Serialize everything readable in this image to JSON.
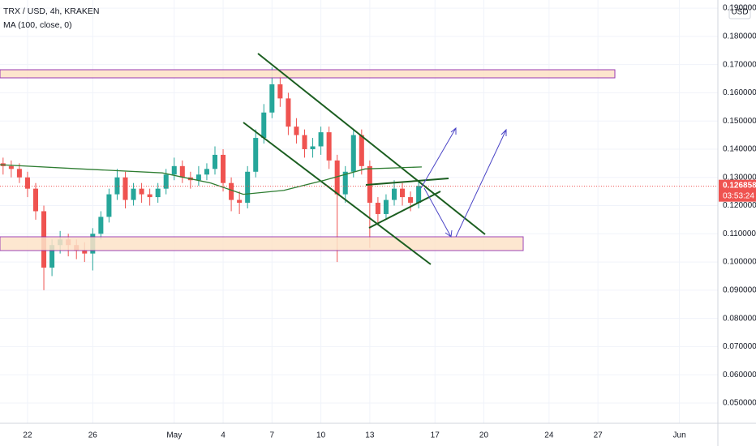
{
  "chart_data": {
    "type": "candlestick",
    "title": "TRX / USD, 4h, KRAKEN",
    "indicator_label": "MA (100, close, 0)",
    "currency": "USD",
    "up_color": "#26a69a",
    "down_color": "#ef5350",
    "x": [
      -1.5,
      -1,
      -0.5,
      0,
      0.5,
      1,
      1.5,
      2,
      2.5,
      3,
      3.5,
      4,
      4.5,
      5,
      5.5,
      6,
      6.5,
      7,
      7.5,
      8,
      8.5,
      9,
      9.5,
      10,
      10.5,
      11,
      11.5,
      12,
      12.5,
      13,
      13.5,
      14,
      14.5,
      15,
      15.5,
      16,
      16.5,
      17,
      17.5,
      18,
      18.5,
      19,
      19.5,
      20,
      20.5,
      21,
      21.5,
      22,
      22.5,
      23,
      23.5,
      24
    ],
    "open": [
      0.135,
      0.134,
      0.133,
      0.13,
      0.126,
      0.118,
      0.098,
      0.106,
      0.108,
      0.106,
      0.104,
      0.103,
      0.11,
      0.116,
      0.124,
      0.13,
      0.122,
      0.126,
      0.124,
      0.123,
      0.126,
      0.131,
      0.134,
      0.13,
      0.129,
      0.131,
      0.133,
      0.138,
      0.128,
      0.122,
      0.121,
      0.132,
      0.144,
      0.153,
      0.163,
      0.158,
      0.148,
      0.145,
      0.14,
      0.141,
      0.146,
      0.136,
      0.124,
      0.132,
      0.145,
      0.134,
      0.121,
      0.117,
      0.122,
      0.126,
      0.123,
      0.121
    ],
    "high": [
      0.137,
      0.136,
      0.135,
      0.132,
      0.128,
      0.12,
      0.108,
      0.111,
      0.11,
      0.108,
      0.107,
      0.112,
      0.118,
      0.126,
      0.133,
      0.132,
      0.128,
      0.128,
      0.126,
      0.128,
      0.133,
      0.137,
      0.136,
      0.132,
      0.134,
      0.135,
      0.141,
      0.14,
      0.13,
      0.125,
      0.134,
      0.147,
      0.156,
      0.169,
      0.166,
      0.16,
      0.151,
      0.147,
      0.144,
      0.148,
      0.148,
      0.138,
      0.134,
      0.147,
      0.147,
      0.136,
      0.123,
      0.124,
      0.129,
      0.128,
      0.125,
      0.129
    ],
    "low": [
      0.131,
      0.13,
      0.128,
      0.123,
      0.115,
      0.09,
      0.095,
      0.103,
      0.102,
      0.101,
      0.1,
      0.097,
      0.108,
      0.114,
      0.122,
      0.119,
      0.12,
      0.121,
      0.12,
      0.121,
      0.124,
      0.129,
      0.128,
      0.126,
      0.127,
      0.129,
      0.131,
      0.125,
      0.118,
      0.117,
      0.119,
      0.13,
      0.142,
      0.151,
      0.155,
      0.145,
      0.142,
      0.137,
      0.137,
      0.138,
      0.133,
      0.1,
      0.121,
      0.13,
      0.131,
      0.105,
      0.113,
      0.115,
      0.12,
      0.12,
      0.118,
      0.119
    ],
    "close": [
      0.134,
      0.133,
      0.13,
      0.126,
      0.118,
      0.098,
      0.106,
      0.108,
      0.106,
      0.104,
      0.103,
      0.11,
      0.116,
      0.124,
      0.13,
      0.122,
      0.126,
      0.124,
      0.123,
      0.126,
      0.131,
      0.134,
      0.13,
      0.129,
      0.131,
      0.133,
      0.138,
      0.128,
      0.122,
      0.121,
      0.132,
      0.144,
      0.153,
      0.163,
      0.158,
      0.148,
      0.145,
      0.14,
      0.141,
      0.146,
      0.136,
      0.124,
      0.132,
      0.145,
      0.134,
      0.121,
      0.117,
      0.122,
      0.126,
      0.123,
      0.121,
      0.127
    ],
    "ma": {
      "color": "#2e7d32",
      "x": [
        -1.69,
        3.28,
        8.26,
        11.25,
        13.24,
        15.73,
        18.22,
        20.71,
        24.19
      ],
      "values": [
        0.1345,
        0.133,
        0.1316,
        0.128,
        0.124,
        0.1254,
        0.129,
        0.133,
        0.1337
      ]
    },
    "last_price": 0.126858,
    "countdown": "03:53:24",
    "xlim": [
      -1.69,
      42.36
    ],
    "xticks": [
      {
        "value": 0,
        "label": "22"
      },
      {
        "value": 4,
        "label": "26"
      },
      {
        "value": 9,
        "label": "May"
      },
      {
        "value": 12,
        "label": "4"
      },
      {
        "value": 15,
        "label": "7"
      },
      {
        "value": 18,
        "label": "10"
      },
      {
        "value": 21,
        "label": "13"
      },
      {
        "value": 25,
        "label": "17"
      },
      {
        "value": 28,
        "label": "20"
      },
      {
        "value": 32,
        "label": "24"
      },
      {
        "value": 35,
        "label": "27"
      },
      {
        "value": 40,
        "label": "Jun"
      }
    ],
    "ylim": [
      0.0428,
      0.1929
    ],
    "yticks": [
      {
        "value": 0.05,
        "label": "0.050000"
      },
      {
        "value": 0.06,
        "label": "0.060000"
      },
      {
        "value": 0.07,
        "label": "0.070000"
      },
      {
        "value": 0.08,
        "label": "0.080000"
      },
      {
        "value": 0.09,
        "label": "0.090000"
      },
      {
        "value": 0.1,
        "label": "0.100000"
      },
      {
        "value": 0.11,
        "label": "0.110000"
      },
      {
        "value": 0.12,
        "label": "0.120000"
      },
      {
        "value": 0.13,
        "label": "0.130000"
      },
      {
        "value": 0.14,
        "label": "0.140000"
      },
      {
        "value": 0.15,
        "label": "0.150000"
      },
      {
        "value": 0.16,
        "label": "0.160000"
      },
      {
        "value": 0.17,
        "label": "0.170000"
      },
      {
        "value": 0.18,
        "label": "0.180000"
      },
      {
        "value": 0.19,
        "label": "0.190000"
      }
    ],
    "grid": true
  }
}
